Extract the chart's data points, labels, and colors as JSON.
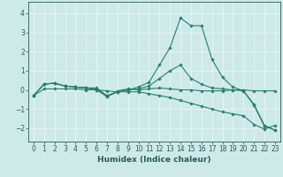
{
  "title": "",
  "xlabel": "Humidex (Indice chaleur)",
  "ylabel": "",
  "xlim": [
    -0.5,
    23.5
  ],
  "ylim": [
    -2.7,
    4.6
  ],
  "yticks": [
    -2,
    -1,
    0,
    1,
    2,
    3,
    4
  ],
  "xticks": [
    0,
    1,
    2,
    3,
    4,
    5,
    6,
    7,
    8,
    9,
    10,
    11,
    12,
    13,
    14,
    15,
    16,
    17,
    18,
    19,
    20,
    21,
    22,
    23
  ],
  "bg_color": "#ceeae8",
  "grid_color": "#e8f5f4",
  "line_color": "#2a7d6f",
  "series": [
    {
      "x": [
        0,
        1,
        2,
        3,
        4,
        5,
        6,
        7,
        8,
        9,
        10,
        11,
        12,
        13,
        14,
        15,
        16,
        17,
        18,
        19,
        20,
        21,
        22,
        23
      ],
      "y": [
        -0.3,
        0.3,
        0.35,
        0.2,
        0.15,
        0.1,
        0.0,
        -0.35,
        -0.05,
        0.05,
        0.0,
        0.05,
        0.1,
        0.05,
        0.0,
        0.0,
        -0.05,
        -0.05,
        -0.05,
        0.0,
        0.0,
        -0.05,
        -0.05,
        -0.05
      ]
    },
    {
      "x": [
        0,
        1,
        2,
        3,
        4,
        5,
        6,
        7,
        8,
        9,
        10,
        11,
        12,
        13,
        14,
        15,
        16,
        17,
        18,
        19,
        20,
        21,
        22,
        23
      ],
      "y": [
        -0.3,
        0.3,
        0.35,
        0.2,
        0.15,
        0.1,
        0.1,
        -0.3,
        -0.1,
        0.0,
        0.15,
        0.4,
        1.3,
        2.2,
        3.75,
        3.35,
        3.35,
        1.6,
        0.65,
        0.15,
        -0.05,
        -0.75,
        -1.85,
        -2.1
      ]
    },
    {
      "x": [
        0,
        1,
        2,
        3,
        4,
        5,
        6,
        7,
        8,
        9,
        10,
        11,
        12,
        13,
        14,
        15,
        16,
        17,
        18,
        19,
        20,
        21,
        22,
        23
      ],
      "y": [
        -0.3,
        0.3,
        0.35,
        0.2,
        0.15,
        0.1,
        0.05,
        -0.35,
        -0.1,
        0.0,
        0.05,
        0.2,
        0.6,
        1.0,
        1.3,
        0.6,
        0.3,
        0.1,
        0.05,
        0.0,
        -0.05,
        -0.8,
        -1.9,
        -2.1
      ]
    },
    {
      "x": [
        0,
        1,
        2,
        3,
        4,
        5,
        6,
        7,
        8,
        9,
        10,
        11,
        12,
        13,
        14,
        15,
        16,
        17,
        18,
        19,
        20,
        21,
        22,
        23
      ],
      "y": [
        -0.3,
        0.05,
        0.05,
        0.05,
        0.05,
        0.0,
        0.0,
        -0.05,
        -0.1,
        -0.1,
        -0.1,
        -0.2,
        -0.3,
        -0.4,
        -0.55,
        -0.7,
        -0.85,
        -1.0,
        -1.15,
        -1.25,
        -1.35,
        -1.8,
        -2.05,
        -1.85
      ]
    }
  ]
}
